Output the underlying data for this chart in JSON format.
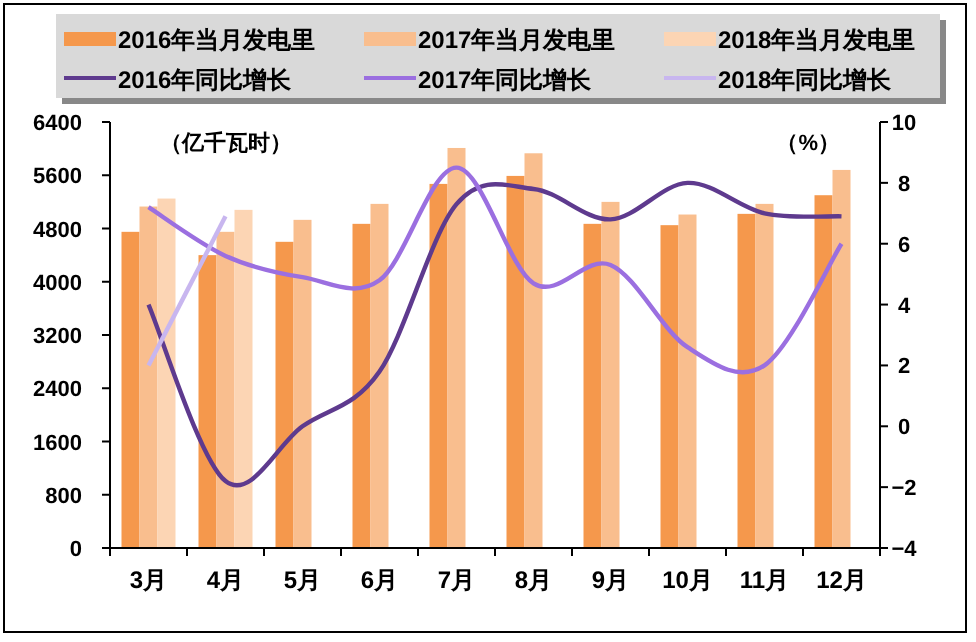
{
  "chart_data": {
    "type": "bar",
    "categories": [
      "3月",
      "4月",
      "5月",
      "6月",
      "7月",
      "8月",
      "9月",
      "10月",
      "11月",
      "12月"
    ],
    "ylabel": "（亿千瓦时）",
    "y2label": "（%）",
    "ylim": [
      0,
      6400
    ],
    "yticks": [
      0,
      800,
      1600,
      2400,
      3200,
      4000,
      4800,
      5600,
      6400
    ],
    "y2lim": [
      -4,
      10
    ],
    "y2ticks": [
      -4,
      -2,
      0,
      2,
      4,
      6,
      8,
      10
    ],
    "grid": false,
    "legend": "top",
    "line_style": "solid",
    "series": [
      {
        "name": "2016年当月发电里",
        "color": "#f5984c",
        "values": [
          4750,
          4400,
          4600,
          4870,
          5470,
          5590,
          4870,
          4850,
          5020,
          5300
        ]
      },
      {
        "name": "2017年当月发电里",
        "color": "#f9be8e",
        "values": [
          5130,
          4750,
          4930,
          5170,
          6010,
          5930,
          5200,
          5010,
          5170,
          5680
        ]
      },
      {
        "name": "2018年当月发电里",
        "color": "#fcd5b4",
        "values": [
          5250,
          5080,
          null,
          null,
          null,
          null,
          null,
          null,
          null,
          null
        ]
      },
      {
        "name": "2016年同比增长",
        "type": "line",
        "axis": "y2",
        "color": "#5e3a8e",
        "values": [
          4.0,
          -1.8,
          0.0,
          1.8,
          7.3,
          7.8,
          6.8,
          8.0,
          7.0,
          6.9
        ]
      },
      {
        "name": "2017年同比增长",
        "type": "line",
        "axis": "y2",
        "color": "#9b6fe0",
        "values": [
          7.2,
          5.6,
          4.9,
          4.8,
          8.5,
          4.7,
          5.3,
          2.6,
          2.0,
          6.0
        ]
      },
      {
        "name": "2018年同比增长",
        "type": "line",
        "axis": "y2",
        "color": "#c8b6ef",
        "values": [
          2.0,
          6.9,
          null,
          null,
          null,
          null,
          null,
          null,
          null,
          null
        ]
      }
    ]
  }
}
